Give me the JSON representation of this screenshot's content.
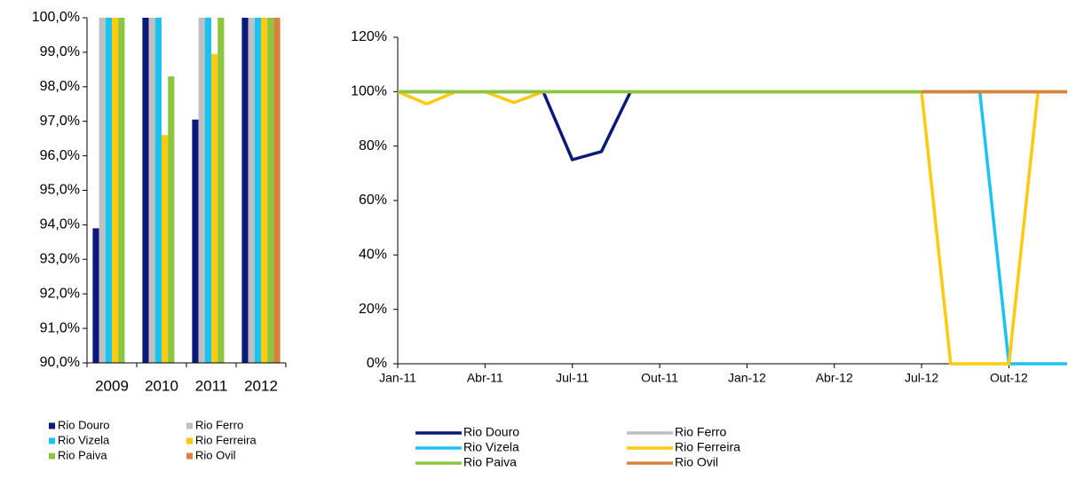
{
  "chart_data": [
    {
      "type": "bar",
      "categories": [
        "2009",
        "2010",
        "2011",
        "2012"
      ],
      "series": [
        {
          "name": "Rio Douro",
          "color": "#0b1a78",
          "values": [
            93.9,
            100,
            97.05,
            100
          ]
        },
        {
          "name": "Rio Ferro",
          "color": "#bfbfbf",
          "values": [
            100,
            100,
            100,
            100
          ]
        },
        {
          "name": "Rio Vizela",
          "color": "#1cc3f0",
          "values": [
            100,
            100,
            100,
            100
          ]
        },
        {
          "name": "Rio Ferreira",
          "color": "#ffc90e",
          "values": [
            100,
            96.6,
            98.95,
            100
          ]
        },
        {
          "name": "Rio Paiva",
          "color": "#8cc63e",
          "values": [
            100,
            98.3,
            100,
            100
          ]
        },
        {
          "name": "Rio Ovil",
          "color": "#d9823f",
          "values": [
            null,
            null,
            null,
            100
          ]
        }
      ],
      "ylim": [
        90,
        100
      ],
      "yticks": [
        {
          "value": 90,
          "label": "90,0%"
        },
        {
          "value": 91,
          "label": "91,0%"
        },
        {
          "value": 92,
          "label": "92,0%"
        },
        {
          "value": 93,
          "label": "93,0%"
        },
        {
          "value": 94,
          "label": "94,0%"
        },
        {
          "value": 95,
          "label": "95,0%"
        },
        {
          "value": 96,
          "label": "96,0%"
        },
        {
          "value": 97,
          "label": "97,0%"
        },
        {
          "value": 98,
          "label": "98,0%"
        },
        {
          "value": 99,
          "label": "99,0%"
        },
        {
          "value": 100,
          "label": "100,0%"
        }
      ]
    },
    {
      "type": "line",
      "categories": [
        "Jan-11",
        null,
        null,
        "Abr-11",
        null,
        null,
        "Jul-11",
        null,
        null,
        "Out-11",
        null,
        null,
        "Jan-12",
        null,
        null,
        "Abr-12",
        null,
        null,
        "Jul-12",
        null,
        null,
        "Out-12",
        null,
        null
      ],
      "series": [
        {
          "name": "Rio Douro",
          "color": "#0b1a78",
          "values": [
            100,
            100,
            100,
            100,
            100,
            100,
            75,
            78,
            100,
            100,
            100,
            100,
            100,
            100,
            100,
            100,
            100,
            100,
            100,
            100,
            100,
            100,
            100,
            100
          ]
        },
        {
          "name": "Rio Ferro",
          "color": "#bfbfbf",
          "values": [
            100,
            100,
            100,
            100,
            100,
            100,
            100,
            100,
            100,
            100,
            100,
            100,
            100,
            100,
            100,
            100,
            100,
            100,
            100,
            100,
            100,
            100,
            100,
            100
          ]
        },
        {
          "name": "Rio Vizela",
          "color": "#1cc3f0",
          "values": [
            100,
            100,
            100,
            100,
            100,
            100,
            100,
            100,
            100,
            100,
            100,
            100,
            100,
            100,
            100,
            100,
            100,
            100,
            100,
            100,
            100,
            0,
            0,
            0
          ]
        },
        {
          "name": "Rio Ferreira",
          "color": "#ffc90e",
          "values": [
            100,
            95.5,
            100,
            100,
            96,
            100,
            100,
            100,
            100,
            100,
            100,
            100,
            100,
            100,
            100,
            100,
            100,
            100,
            100,
            0,
            0,
            0,
            100,
            100
          ]
        },
        {
          "name": "Rio Paiva",
          "color": "#8cc63e",
          "values": [
            100,
            100,
            100,
            100,
            100,
            100,
            100,
            100,
            100,
            100,
            100,
            100,
            100,
            100,
            100,
            100,
            100,
            100,
            100,
            100,
            100,
            100,
            100,
            100
          ]
        },
        {
          "name": "Rio Ovil",
          "color": "#d9823f",
          "values": [
            null,
            null,
            null,
            null,
            null,
            null,
            null,
            null,
            null,
            null,
            null,
            null,
            null,
            null,
            null,
            null,
            null,
            null,
            100,
            100,
            100,
            100,
            100,
            100
          ]
        }
      ],
      "ylim": [
        0,
        120
      ],
      "yticks": [
        {
          "value": 0,
          "label": "0%"
        },
        {
          "value": 20,
          "label": "20%"
        },
        {
          "value": 40,
          "label": "40%"
        },
        {
          "value": 60,
          "label": "60%"
        },
        {
          "value": 80,
          "label": "80%"
        },
        {
          "value": 100,
          "label": "100%"
        },
        {
          "value": 120,
          "label": "120%"
        }
      ]
    }
  ]
}
